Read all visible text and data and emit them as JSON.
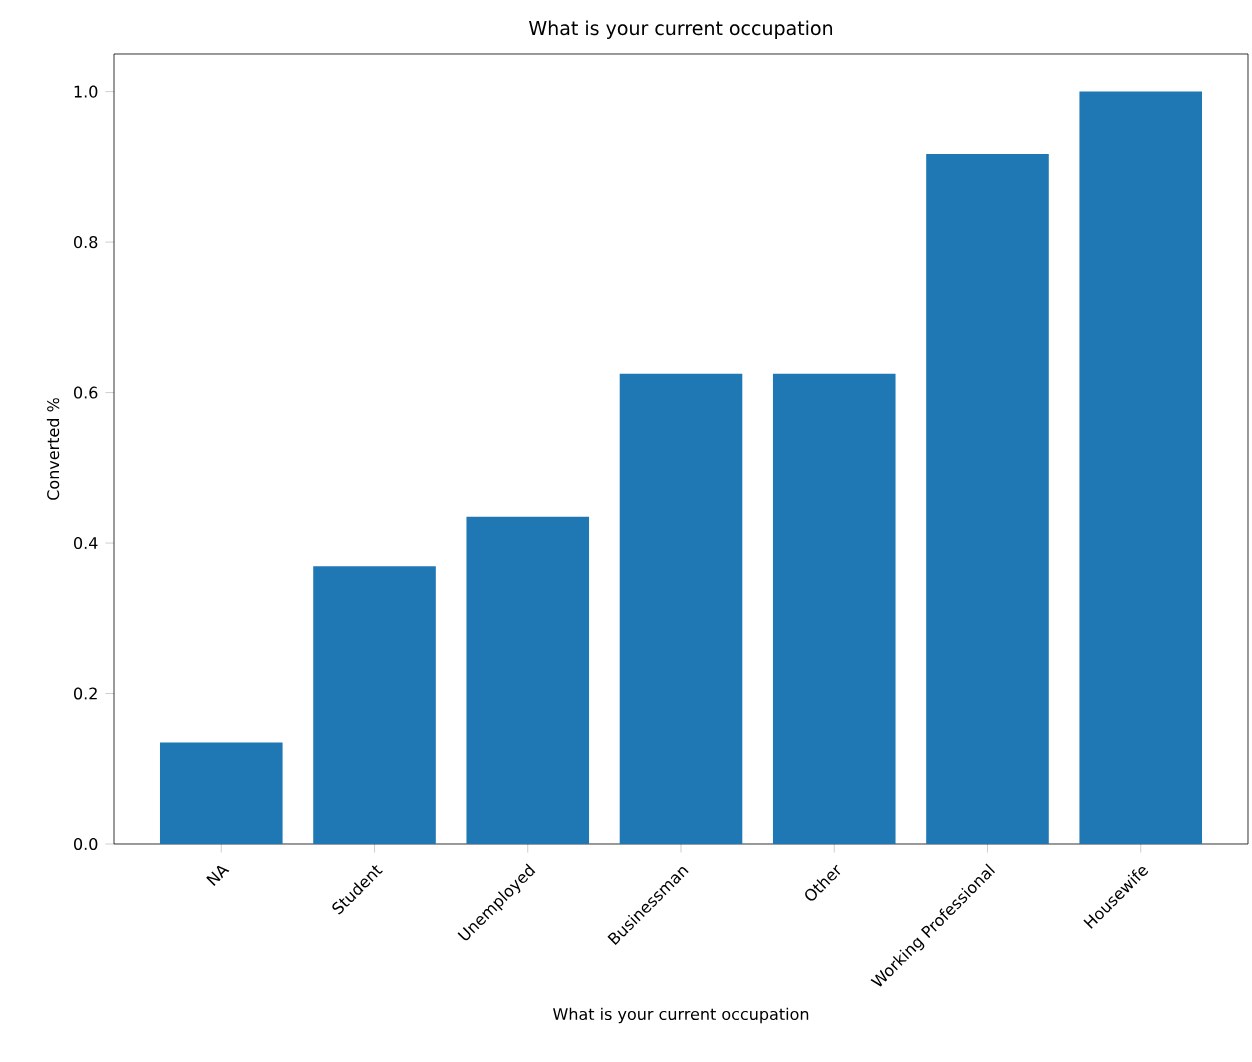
{
  "chart_data": {
    "type": "bar",
    "title": "What is your current occupation",
    "xlabel": "What is your current occupation",
    "ylabel": "Converted %",
    "categories": [
      "NA",
      "Student",
      "Unemployed",
      "Businessman",
      "Other",
      "Working Professional",
      "Housewife"
    ],
    "values": [
      0.135,
      0.369,
      0.435,
      0.625,
      0.625,
      0.917,
      1.0
    ],
    "color": "#1f77b4",
    "ylim": [
      0,
      1.05
    ],
    "yticks": [
      {
        "value": 0,
        "label": "0.0"
      },
      0.2,
      0.4,
      0.6,
      0.8,
      {
        "value": 1,
        "label": "1.0"
      }
    ],
    "grid": false
  }
}
